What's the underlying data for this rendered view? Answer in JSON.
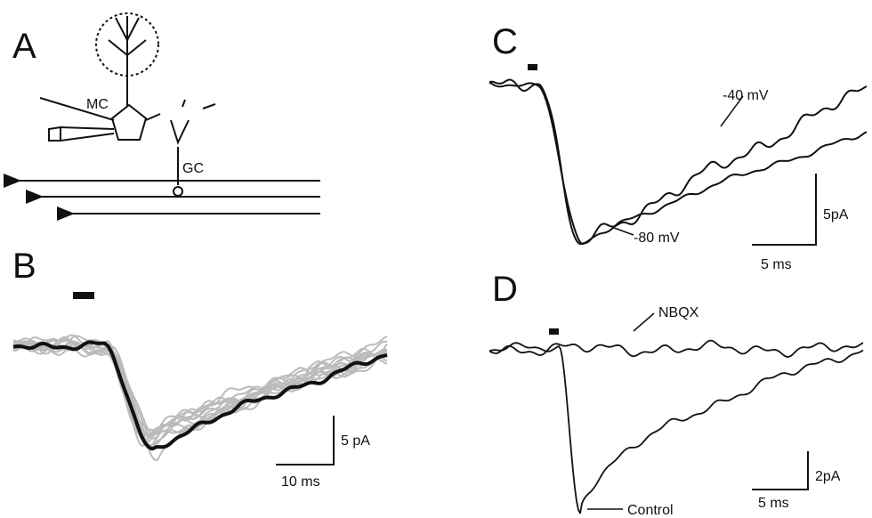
{
  "panels": {
    "A": {
      "label": "A",
      "texts": [
        "MC",
        "GC"
      ]
    },
    "B": {
      "label": "B",
      "scale_y": "5 pA",
      "scale_x": "10 ms"
    },
    "C": {
      "label": "C",
      "trace_labels": [
        "-40 mV",
        "-80 mV"
      ],
      "scale_y": "5pA",
      "scale_x": "5 ms"
    },
    "D": {
      "label": "D",
      "trace_labels": [
        "NBQX",
        "Control"
      ],
      "scale_y": "2pA",
      "scale_x": "5 ms"
    }
  }
}
